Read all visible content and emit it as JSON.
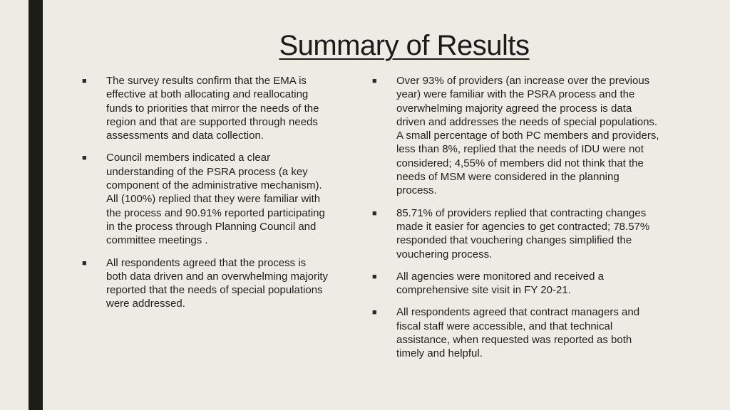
{
  "slide": {
    "title": "Summary of Results",
    "bullet_symbol": "■",
    "left_column": [
      {
        "text": "The survey results confirm that the EMA is\neffective at both allocating and reallocating\nfunds to priorities that mirror the needs of the\nregion and that are supported through needs\nassessments and data collection."
      },
      {
        "text": "Council members indicated a clear\nunderstanding of the PSRA process (a key\ncomponent of the administrative mechanism).\nAll (100%) replied that they were familiar with\nthe process and 90.91% reported participating\nin the process through Planning Council and\ncommittee meetings ."
      },
      {
        "text": " All respondents agreed that the process is\nboth data driven and an overwhelming majority\nreported that the needs of special populations\nwere addressed."
      }
    ],
    "right_column": [
      {
        "text": "Over 93% of providers (an increase over the previous\nyear) were familiar with the PSRA process and the\noverwhelming majority agreed the process is data\ndriven and addresses the needs of special populations.\nA small percentage of both PC members and providers,\nless than 8%, replied that the needs of IDU were not\nconsidered; 4,55% of members did not think that the\nneeds of  MSM were considered in the planning\nprocess."
      },
      {
        "text": "85.71% of providers replied that contracting changes\nmade it easier for agencies to get contracted; 78.57%\nresponded that vouchering changes simplified the\nvouchering process."
      },
      {
        "text": "All agencies were monitored and received a\ncomprehensive site visit in FY 20-21."
      },
      {
        "text": "All respondents agreed that contract managers and\nfiscal staff were accessible, and that technical\nassistance, when requested was reported as both\ntimely and helpful."
      }
    ]
  },
  "colors": {
    "background": "#edebe3",
    "accent_bar": "#1d1d18",
    "text": "#1f1f1f"
  }
}
